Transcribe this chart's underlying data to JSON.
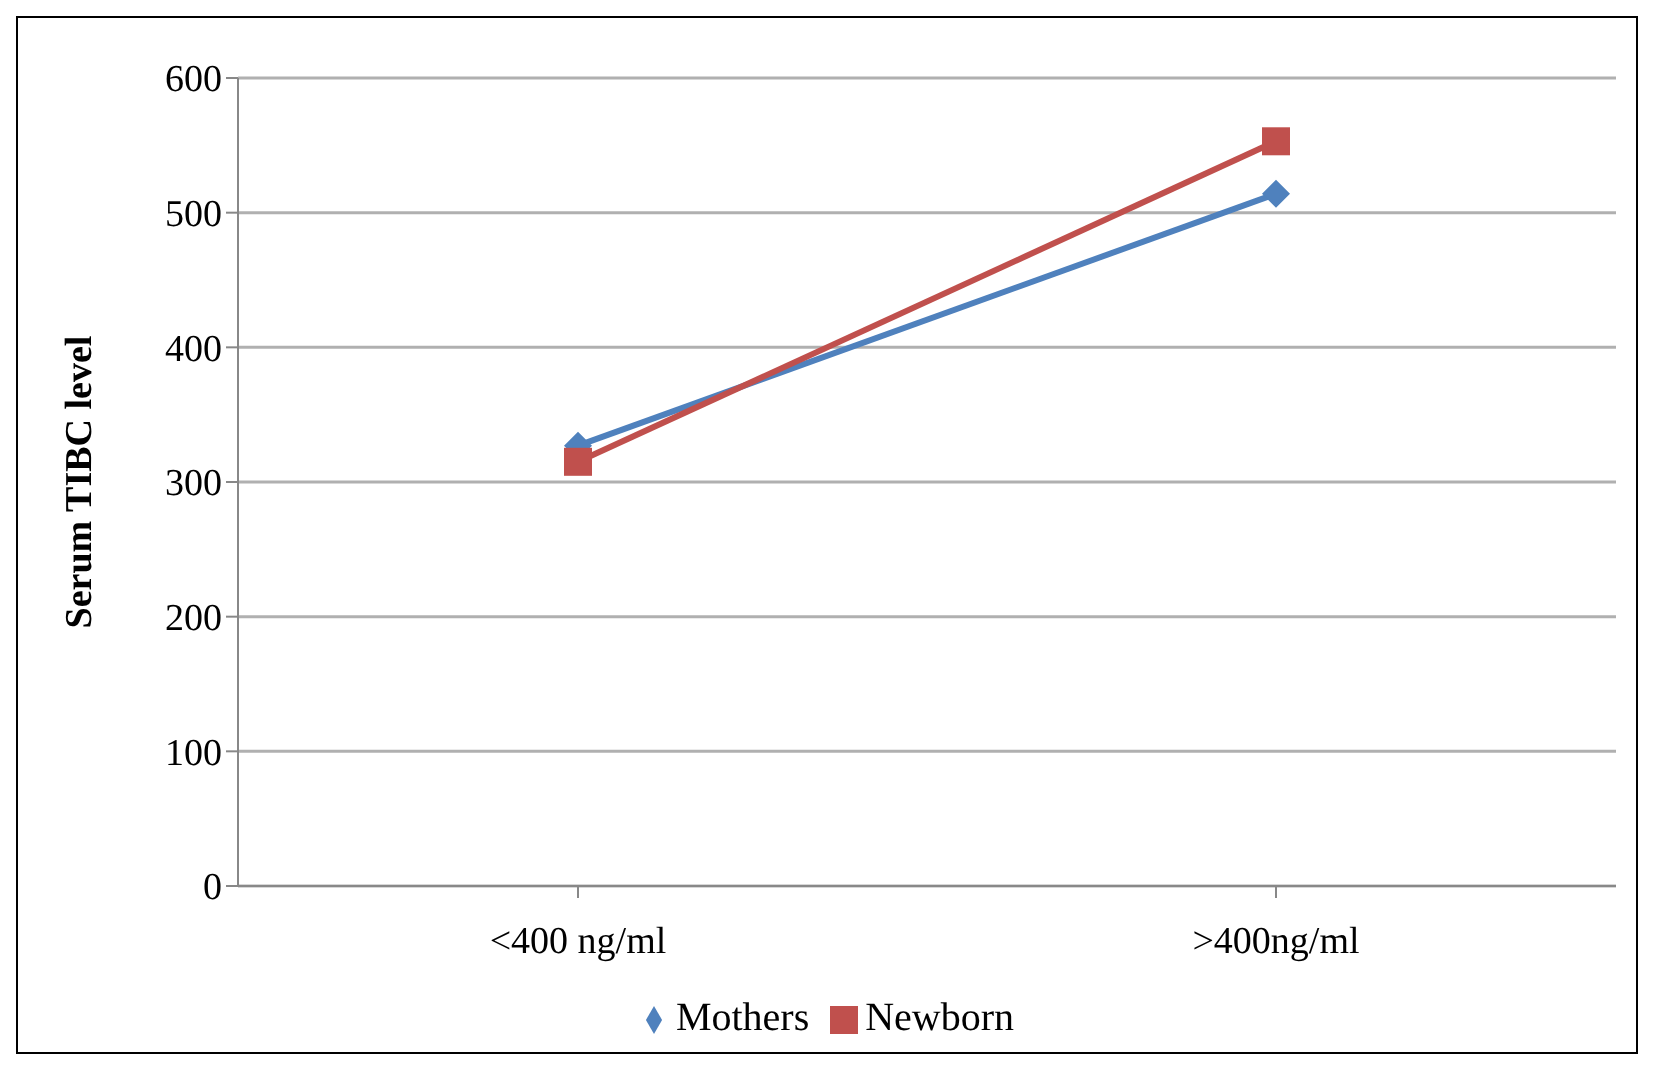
{
  "chart_data": {
    "type": "line",
    "ylabel": "Serum TIBC level",
    "categories": [
      "<400 ng/ml",
      ">400ng/ml"
    ],
    "series": [
      {
        "name": "Mothers",
        "color": "#4f81bd",
        "values": [
          327,
          514
        ],
        "marker": "diamond"
      },
      {
        "name": "Newborn",
        "color": "#c0504d",
        "values": [
          315,
          553
        ],
        "marker": "square"
      }
    ],
    "ylim": [
      0,
      600
    ],
    "yticks": [
      0,
      100,
      200,
      300,
      400,
      500,
      600
    ],
    "grid": "y",
    "legend": "bottom"
  }
}
